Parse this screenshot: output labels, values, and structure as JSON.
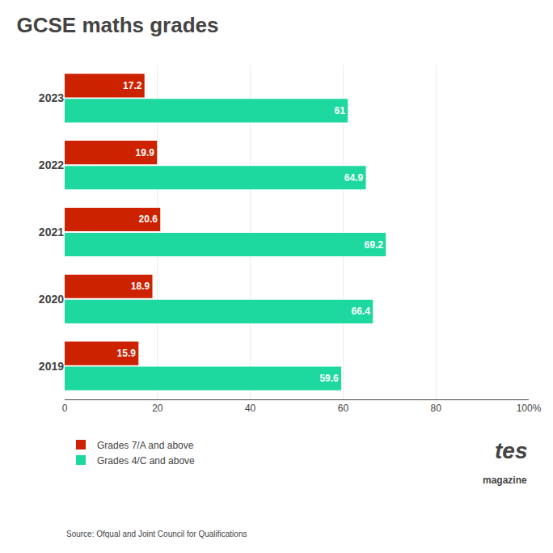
{
  "chart_data": {
    "type": "bar",
    "orientation": "horizontal",
    "title": "GCSE maths grades",
    "categories": [
      "2019",
      "2020",
      "2021",
      "2022",
      "2023"
    ],
    "series": [
      {
        "name": "Grades 7/A and above",
        "color": "#cc2200",
        "values": [
          15.9,
          18.9,
          20.6,
          19.9,
          17.2
        ]
      },
      {
        "name": "Grades 4/C and above",
        "color": "#1dd9a0",
        "values": [
          59.6,
          66.4,
          69.2,
          64.9,
          61
        ]
      }
    ],
    "xlim": [
      0,
      100
    ],
    "xticks": [
      0,
      20,
      40,
      60,
      80,
      {
        "value": 100,
        "label": "100%"
      }
    ],
    "grid": true,
    "legend": "bottom",
    "data_labels": true,
    "annotations": [
      "Source: Ofqual and Joint Council for Qualifications",
      "tes",
      "magazine"
    ]
  }
}
